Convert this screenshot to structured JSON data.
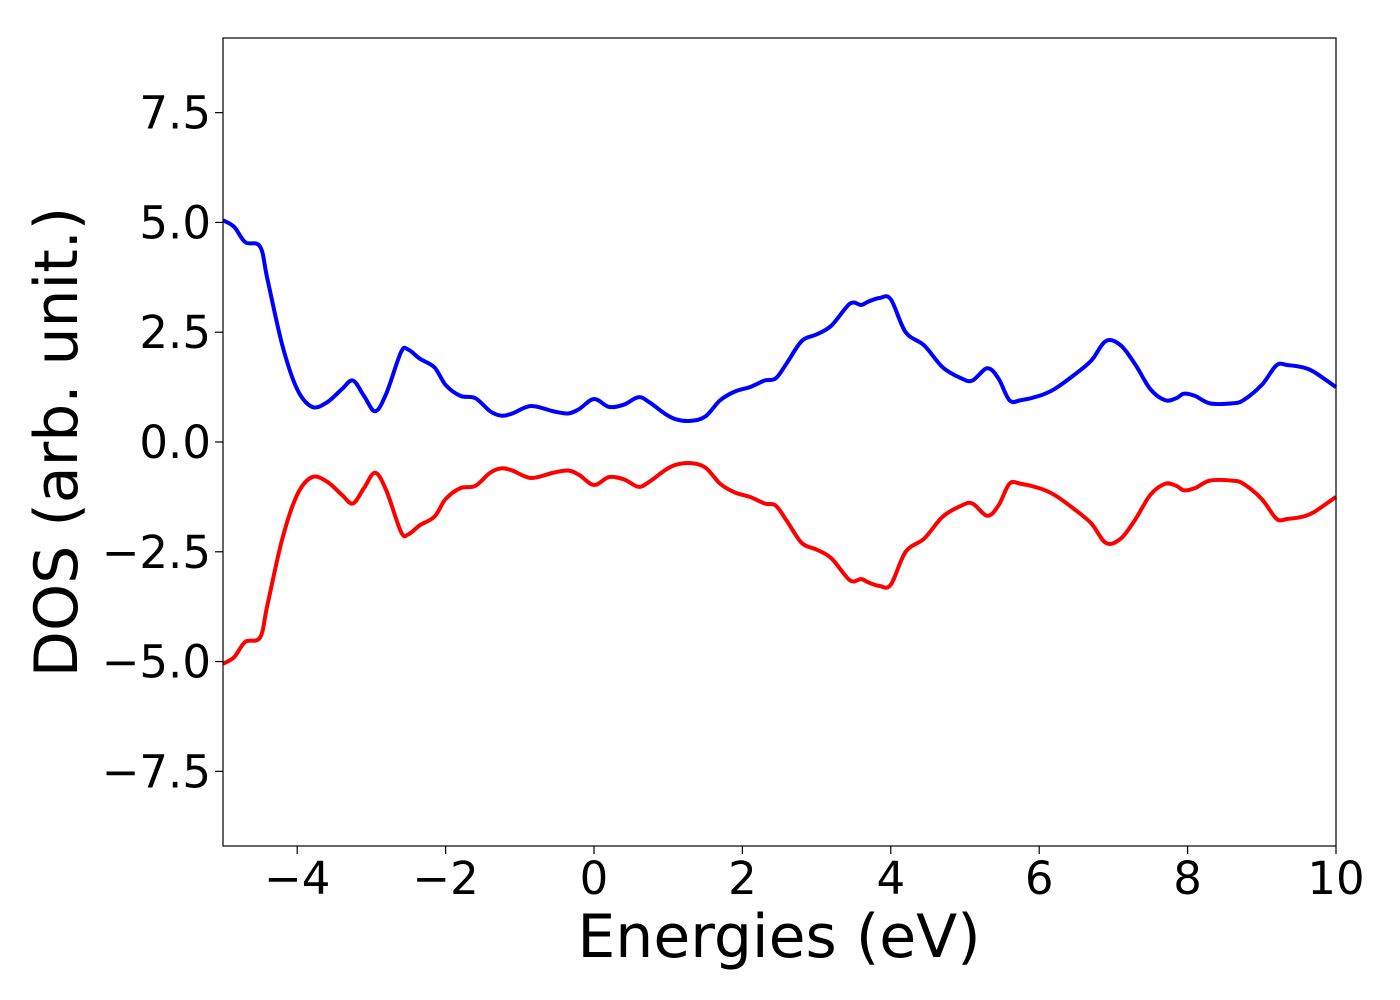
{
  "chart_data": {
    "type": "line",
    "title": "",
    "xlabel": "Energies (eV)",
    "ylabel": "DOS (arb. unit.)",
    "xlim": [
      -5,
      10
    ],
    "ylim": [
      -9.2,
      9.2
    ],
    "x_ticks": [
      -4,
      -2,
      0,
      2,
      4,
      6,
      8,
      10
    ],
    "x_tick_labels": [
      "−4",
      "−2",
      "0",
      "2",
      "4",
      "6",
      "8",
      "10"
    ],
    "y_ticks": [
      -7.5,
      -5.0,
      -2.5,
      0.0,
      2.5,
      5.0,
      7.5
    ],
    "y_tick_labels": [
      "−7.5",
      "−5.0",
      "−2.5",
      "0.0",
      "2.5",
      "5.0",
      "7.5"
    ],
    "grid": false,
    "legend": "none",
    "x": [
      -5.0,
      -4.85,
      -4.7,
      -4.5,
      -4.4,
      -4.2,
      -4.0,
      -3.8,
      -3.6,
      -3.4,
      -3.25,
      -3.1,
      -2.95,
      -2.8,
      -2.6,
      -2.5,
      -2.35,
      -2.15,
      -2.0,
      -1.8,
      -1.6,
      -1.4,
      -1.25,
      -1.1,
      -0.85,
      -0.55,
      -0.35,
      -0.2,
      0.0,
      0.2,
      0.4,
      0.6,
      0.75,
      0.95,
      1.1,
      1.3,
      1.5,
      1.7,
      1.9,
      2.1,
      2.3,
      2.45,
      2.6,
      2.8,
      3.0,
      3.2,
      3.45,
      3.6,
      3.7,
      3.85,
      4.0,
      4.2,
      4.45,
      4.7,
      4.95,
      5.1,
      5.3,
      5.45,
      5.6,
      5.75,
      6.0,
      6.2,
      6.45,
      6.7,
      6.9,
      7.1,
      7.3,
      7.5,
      7.7,
      7.85,
      7.95,
      8.1,
      8.3,
      8.6,
      8.75,
      9.0,
      9.2,
      9.35,
      9.55,
      9.7,
      10.0
    ],
    "series": [
      {
        "color": "#0000ff",
        "values": [
          5.05,
          4.9,
          4.55,
          4.45,
          3.7,
          2.2,
          1.2,
          0.8,
          0.9,
          1.2,
          1.4,
          1.05,
          0.7,
          1.1,
          2.05,
          2.1,
          1.9,
          1.7,
          1.3,
          1.05,
          1.0,
          0.7,
          0.6,
          0.65,
          0.82,
          0.7,
          0.65,
          0.75,
          0.98,
          0.8,
          0.85,
          1.02,
          0.9,
          0.65,
          0.52,
          0.48,
          0.58,
          0.95,
          1.15,
          1.25,
          1.4,
          1.45,
          1.8,
          2.3,
          2.45,
          2.65,
          3.15,
          3.12,
          3.2,
          3.28,
          3.25,
          2.5,
          2.2,
          1.7,
          1.45,
          1.4,
          1.68,
          1.45,
          0.95,
          0.95,
          1.05,
          1.2,
          1.5,
          1.85,
          2.3,
          2.2,
          1.75,
          1.2,
          0.95,
          1.0,
          1.1,
          1.05,
          0.88,
          0.88,
          0.95,
          1.3,
          1.75,
          1.75,
          1.7,
          1.6,
          1.25
        ]
      },
      {
        "color": "#ff0000",
        "values": [
          -5.05,
          -4.9,
          -4.55,
          -4.45,
          -3.7,
          -2.2,
          -1.2,
          -0.8,
          -0.9,
          -1.2,
          -1.4,
          -1.05,
          -0.7,
          -1.1,
          -2.05,
          -2.1,
          -1.9,
          -1.7,
          -1.3,
          -1.05,
          -1.0,
          -0.7,
          -0.6,
          -0.65,
          -0.82,
          -0.7,
          -0.65,
          -0.75,
          -0.98,
          -0.8,
          -0.85,
          -1.02,
          -0.9,
          -0.65,
          -0.52,
          -0.48,
          -0.58,
          -0.95,
          -1.15,
          -1.25,
          -1.4,
          -1.45,
          -1.8,
          -2.3,
          -2.45,
          -2.65,
          -3.15,
          -3.12,
          -3.2,
          -3.28,
          -3.25,
          -2.5,
          -2.2,
          -1.7,
          -1.45,
          -1.4,
          -1.68,
          -1.45,
          -0.95,
          -0.95,
          -1.05,
          -1.2,
          -1.5,
          -1.85,
          -2.3,
          -2.2,
          -1.75,
          -1.2,
          -0.95,
          -1.0,
          -1.1,
          -1.05,
          -0.88,
          -0.88,
          -0.95,
          -1.3,
          -1.75,
          -1.75,
          -1.7,
          -1.6,
          -1.25
        ]
      }
    ]
  }
}
